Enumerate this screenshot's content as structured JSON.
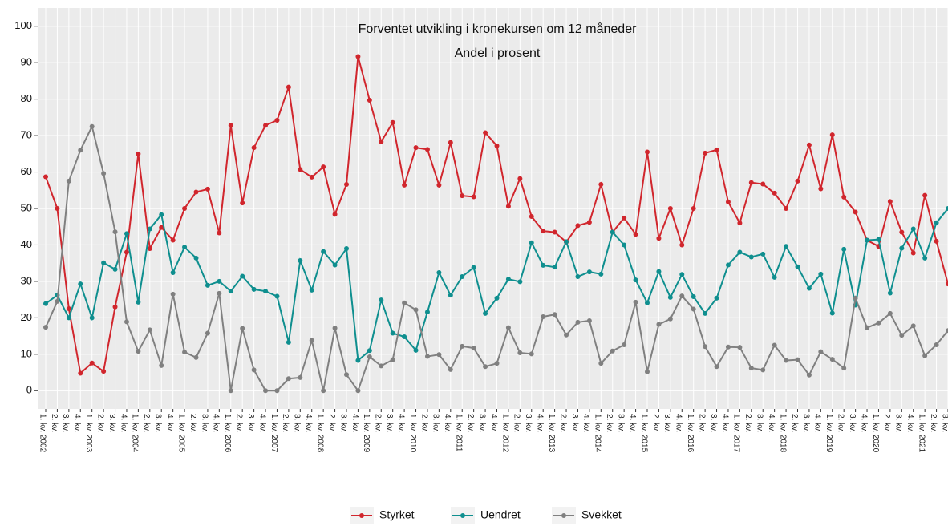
{
  "chart_data": {
    "type": "line",
    "title": "Forventet utvikling i kronekursen om 12 måneder",
    "subtitle": "Andel i prosent",
    "categories": [
      "1. kv. 2002",
      "2. kv.",
      "3. kv.",
      "4. kv.",
      "1. kv. 2003",
      "2. kv.",
      "3. kv.",
      "4. kv.",
      "1. kv. 2004",
      "2. kv.",
      "3. kv.",
      "4. kv.",
      "1. kv. 2005",
      "2. kv.",
      "3. kv.",
      "4. kv.",
      "1. kv. 2006",
      "2. kv.",
      "3. kv.",
      "4. kv.",
      "1. kv. 2007",
      "2. kv.",
      "3. kv.",
      "4. kv.",
      "1. kv. 2008",
      "2. kv.",
      "3. kv.",
      "4. kv.",
      "1. kv. 2009",
      "2. kv.",
      "3. kv.",
      "4. kv.",
      "1. kv. 2010",
      "2. kv.",
      "3. kv.",
      "4. kv.",
      "1. kv. 2011",
      "2. kv.",
      "3. kv.",
      "4. kv.",
      "1. kv. 2012",
      "2. kv.",
      "3. kv.",
      "4. kv.",
      "1. kv. 2013",
      "2. kv.",
      "3. kv.",
      "4. kv.",
      "1. kv. 2014",
      "2. kv.",
      "3. kv.",
      "4. kv.",
      "1. kv. 2015",
      "2. kv.",
      "3. kv.",
      "4. kv.",
      "1. kv. 2016",
      "2. kv.",
      "3. kv.",
      "4. kv.",
      "1. kv. 2017",
      "2. kv.",
      "3. kv.",
      "4. kv.",
      "1. kv. 2018",
      "2. kv.",
      "3. kv.",
      "4. kv.",
      "1. kv. 2019",
      "2. kv.",
      "3. kv.",
      "4. kv.",
      "1. kv. 2020",
      "2. kv.",
      "3. kv.",
      "4. kv.",
      "1. kv. 2021",
      "2. kv.",
      "3. kv."
    ],
    "series": [
      {
        "name": "Styrket",
        "color": "#d1262d",
        "values": [
          58.7,
          50,
          22.5,
          4.8,
          7.6,
          5.3,
          23,
          38,
          65,
          39,
          44.8,
          41.3,
          50,
          54.5,
          55.3,
          43.3,
          72.8,
          51.5,
          66.7,
          72.8,
          74.2,
          83.3,
          60.7,
          58.6,
          61.4,
          48.4,
          56.6,
          91.7,
          79.7,
          68.3,
          73.6,
          56.4,
          66.7,
          66.2,
          56.4,
          68.1,
          53.5,
          53.2,
          70.8,
          67.2,
          50.6,
          58.2,
          47.8,
          43.8,
          43.5,
          40.8,
          45.3,
          46.2,
          56.6,
          43.5,
          47.4,
          42.9,
          65.5,
          41.8,
          50,
          40,
          50,
          65.2,
          66.1,
          51.8,
          46,
          57.1,
          56.7,
          54.2,
          50,
          57.5,
          67.4,
          55.4,
          70.2,
          53.1,
          49,
          41.3,
          39.6,
          51.9,
          43.5,
          37.8,
          53.6,
          41,
          29.3
        ]
      },
      {
        "name": "Uendret",
        "color": "#0f8f8f",
        "values": [
          23.9,
          26.2,
          20,
          29.3,
          20,
          35.1,
          33.3,
          43.1,
          24.3,
          44.4,
          48.3,
          32.4,
          39.4,
          36.4,
          28.9,
          30,
          27.3,
          31.4,
          27.8,
          27.3,
          25.9,
          13.3,
          35.7,
          27.6,
          38.2,
          34.5,
          39,
          8.3,
          11,
          24.9,
          15.8,
          14.8,
          11.1,
          21.6,
          32.4,
          26.2,
          31.3,
          33.8,
          21.2,
          25.4,
          30.6,
          29.9,
          40.6,
          34.4,
          33.9,
          40.9,
          31.3,
          32.6,
          32,
          43.5,
          40,
          30.4,
          24.1,
          32.7,
          25.6,
          31.9,
          25.8,
          21.2,
          25.4,
          34.5,
          38,
          36.7,
          37.5,
          31.1,
          39.6,
          34,
          28.1,
          32,
          21.3,
          38.8,
          23.5,
          41.3,
          41.5,
          26.8,
          39.1,
          44.4,
          36.4,
          46.1,
          50
        ]
      },
      {
        "name": "Svekket",
        "color": "#808080",
        "values": [
          17.4,
          24.5,
          57.5,
          66,
          72.5,
          59.6,
          43.6,
          18.9,
          10.8,
          16.7,
          6.9,
          26.5,
          10.6,
          9.1,
          15.8,
          26.7,
          0,
          17.1,
          5.7,
          0,
          0,
          3.3,
          3.6,
          13.8,
          0,
          17.2,
          4.4,
          0,
          9.3,
          6.8,
          8.5,
          24.1,
          22.2,
          9.4,
          9.9,
          5.8,
          12.2,
          11.7,
          6.6,
          7.5,
          17.3,
          10.4,
          10.1,
          20.3,
          20.9,
          15.3,
          18.8,
          19.2,
          7.5,
          10.9,
          12.6,
          24.3,
          5.2,
          18.2,
          19.7,
          26,
          22.4,
          12.1,
          6.6,
          12,
          11.9,
          6.2,
          5.7,
          12.5,
          8.3,
          8.5,
          4.3,
          10.7,
          8.6,
          6.2,
          25.4,
          17.3,
          18.6,
          21.2,
          15.2,
          17.8,
          9.6,
          12.6,
          16.5
        ]
      }
    ],
    "ylim": [
      -5,
      105
    ],
    "yticks": [
      0,
      10,
      20,
      30,
      40,
      50,
      60,
      70,
      80,
      90,
      100
    ],
    "grid": true,
    "legend": "bottom"
  }
}
